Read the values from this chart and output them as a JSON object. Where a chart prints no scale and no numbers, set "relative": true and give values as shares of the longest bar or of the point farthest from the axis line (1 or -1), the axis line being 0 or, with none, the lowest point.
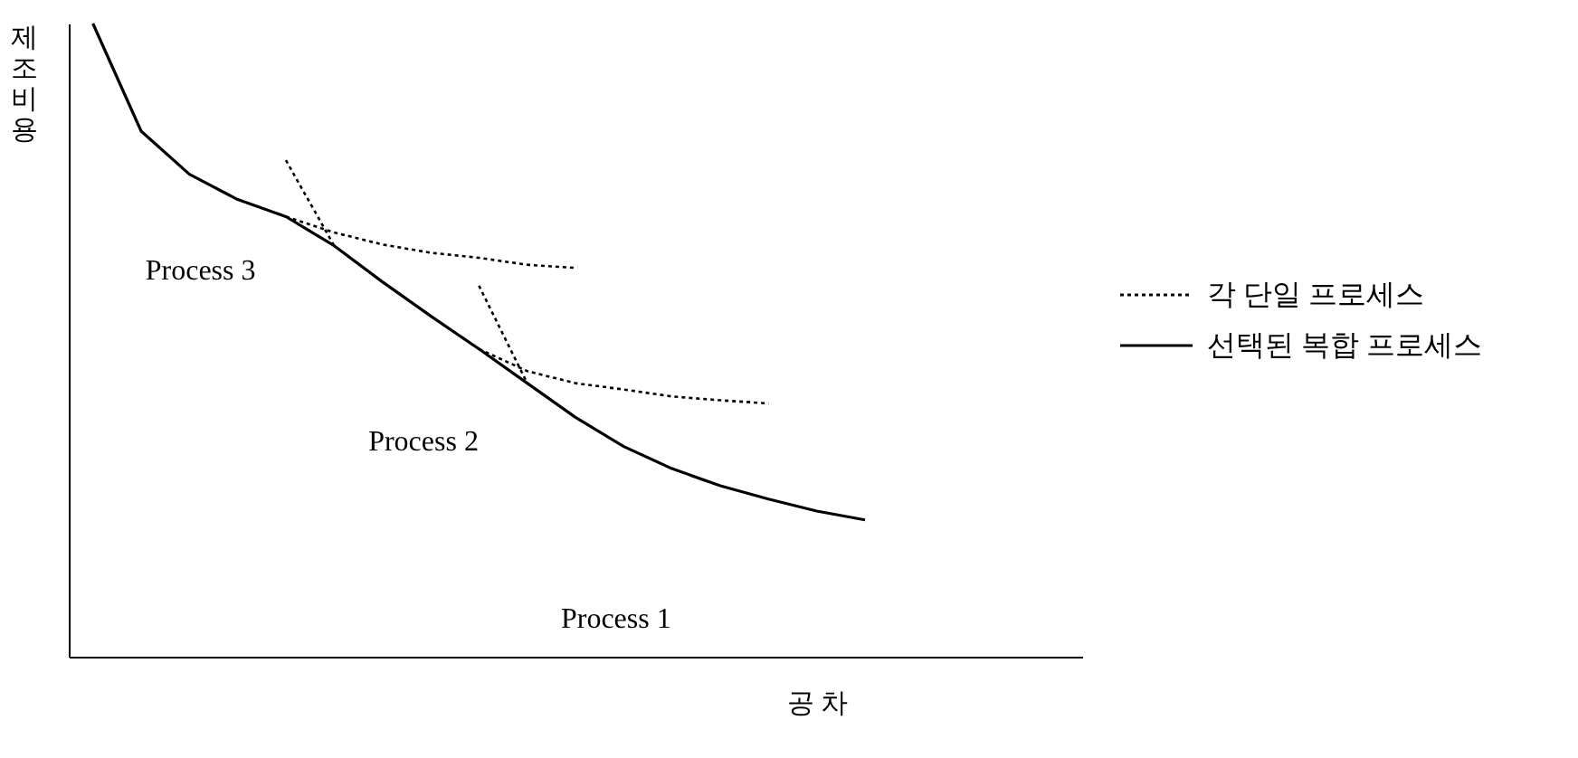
{
  "chart_data": {
    "type": "line",
    "relative": true,
    "tick_labels": false,
    "legend": "right",
    "ylabel": "제조비용",
    "xlabel": "공 차",
    "categories": [
      null,
      null,
      null,
      null,
      null,
      null,
      null,
      null,
      null,
      null,
      null,
      null,
      null,
      null,
      null,
      null,
      null,
      null,
      null,
      null,
      null
    ],
    "annotations": [
      "Process 3",
      "Process 2",
      "Process 1"
    ],
    "series": [
      {
        "name": "각 단일 프로세스",
        "color": "#000000",
        "line_style": "dotted",
        "values": [
          null,
          null,
          null,
          null,
          0.695,
          0.67,
          0.651,
          0.638,
          0.63,
          0.619,
          0.614,
          null,
          null,
          null,
          null,
          null,
          null,
          null,
          null,
          null,
          null
        ]
      },
      {
        "color": "#000000",
        "line_style": "dotted",
        "values": [
          null,
          null,
          null,
          null,
          0.784,
          0.649,
          null,
          null,
          0.486,
          0.451,
          0.432,
          0.422,
          0.411,
          0.405,
          0.4,
          null,
          null,
          null,
          null,
          null,
          null
        ]
      },
      {
        "color": "#000000",
        "line_style": "dotted",
        "values": [
          null,
          null,
          null,
          null,
          null,
          null,
          null,
          null,
          0.586,
          0.432,
          null,
          null,
          null,
          null,
          null,
          null,
          null,
          null,
          null,
          null,
          null
        ]
      },
      {
        "name": "선택된 복합 프로세스",
        "color": "#000000",
        "line_style": "solid",
        "values": [
          1.0,
          0.83,
          0.762,
          0.722,
          0.695,
          0.649,
          0.592,
          0.538,
          0.486,
          0.432,
          0.378,
          0.332,
          0.297,
          0.27,
          0.249,
          0.23,
          0.216,
          null,
          null,
          null,
          null
        ]
      }
    ]
  }
}
